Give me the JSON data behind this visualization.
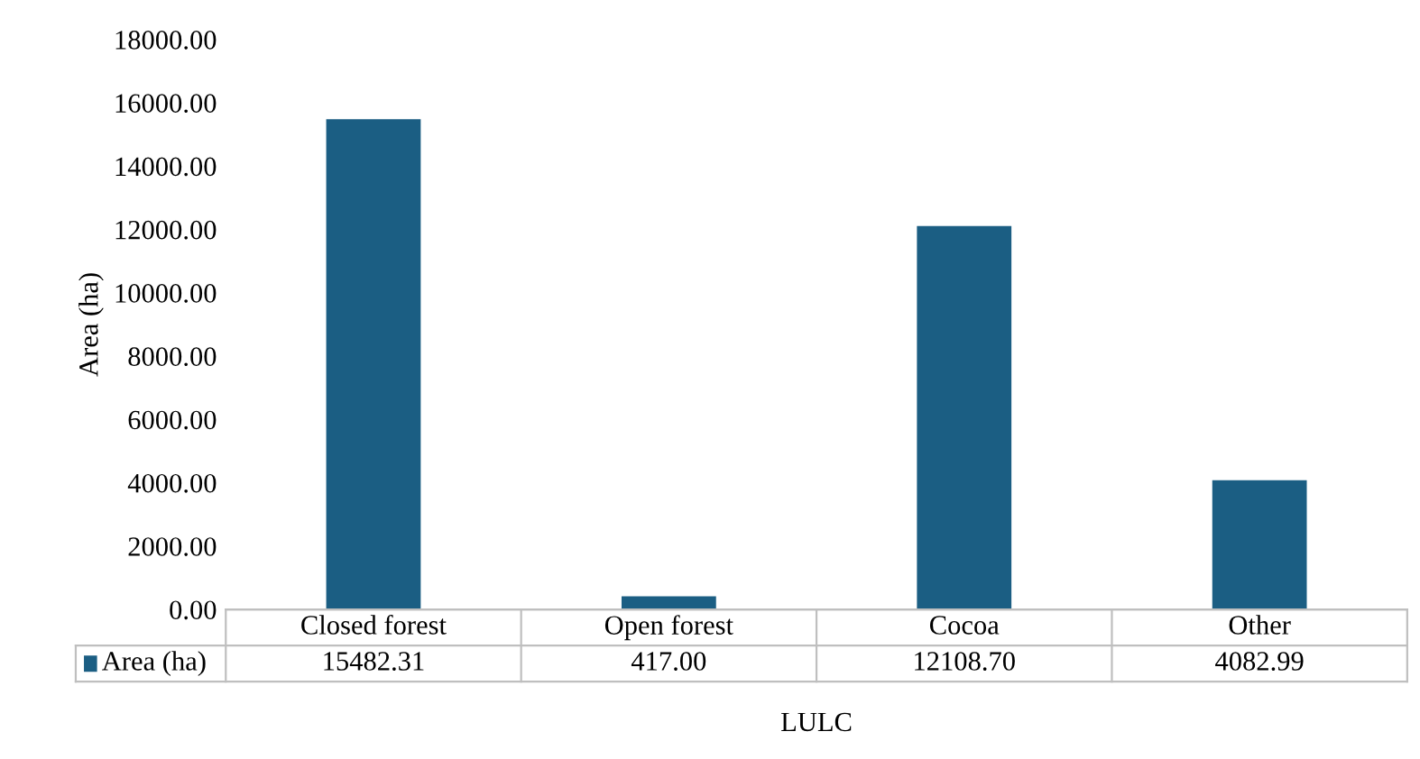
{
  "chart_data": {
    "type": "bar",
    "xlabel": "LULC",
    "ylabel": "Area (ha)",
    "categories": [
      "Closed forest",
      "Open forest",
      "Cocoa",
      "Other"
    ],
    "series": [
      {
        "name": "Area (ha)",
        "color": "#1b5e83",
        "values": [
          15482.31,
          417.0,
          12108.7,
          4082.99
        ],
        "value_labels": [
          "15482.31",
          "417.00",
          "12108.70",
          "4082.99"
        ]
      }
    ],
    "ylim": [
      0,
      18000
    ],
    "yticks": [
      {
        "value": 0,
        "label": "0.00"
      },
      {
        "value": 2000,
        "label": "2000.00"
      },
      {
        "value": 4000,
        "label": "4000.00"
      },
      {
        "value": 6000,
        "label": "6000.00"
      },
      {
        "value": 8000,
        "label": "8000.00"
      },
      {
        "value": 10000,
        "label": "10000.00"
      },
      {
        "value": 12000,
        "label": "12000.00"
      },
      {
        "value": 14000,
        "label": "14000.00"
      },
      {
        "value": 16000,
        "label": "16000.00"
      },
      {
        "value": 18000,
        "label": "18000.00"
      }
    ],
    "grid": false
  }
}
